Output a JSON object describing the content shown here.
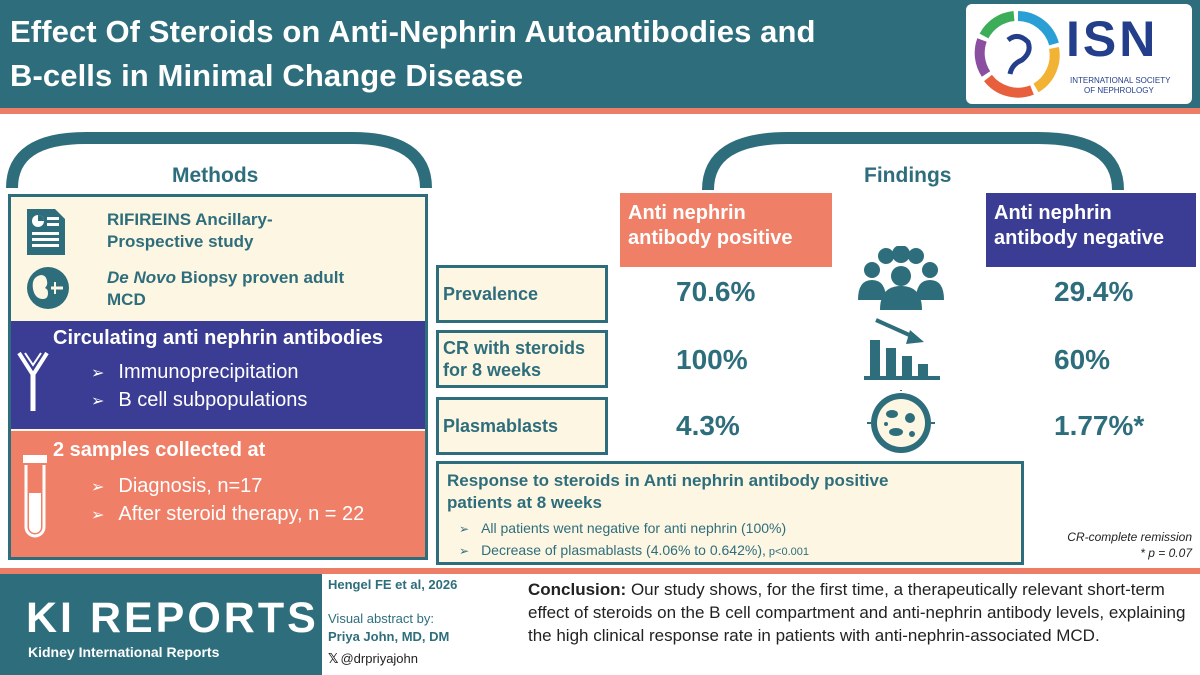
{
  "header": {
    "title_line1": "Effect Of Steroids on Anti-Nephrin Autoantibodies and",
    "title_line2": "B-cells in Minimal Change Disease",
    "isn_logo_text": "ISN",
    "isn_sub1": "INTERNATIONAL SOCIETY",
    "isn_sub2": "OF NEPHROLOGY"
  },
  "methods": {
    "heading": "Methods",
    "study_line1": "RIFIREINS Ancillary-",
    "study_line2": "Prospective study",
    "biopsy_italic": "De Novo",
    "biopsy_rest1": " Biopsy proven adult",
    "biopsy_rest2": "MCD",
    "circ_title": "Circulating anti nephrin antibodies",
    "circ_items": [
      "Immunoprecipitation",
      "B cell subpopulations"
    ],
    "samples_title": "2 samples collected at",
    "samples_items": [
      "Diagnosis, n=17",
      "After steroid therapy, n = 22"
    ]
  },
  "findings": {
    "heading": "Findings",
    "pos_head_line1": "Anti nephrin",
    "pos_head_line2": "antibody positive",
    "neg_head_line1": "Anti nephrin",
    "neg_head_line2": "antibody negative",
    "rows": [
      {
        "label_line1": "Prevalence",
        "label_line2": "",
        "pos": "70.6%",
        "neg": "29.4%"
      },
      {
        "label_line1": "CR with steroids",
        "label_line2": "for 8 weeks",
        "pos": "100%",
        "neg": "60%"
      },
      {
        "label_line1": "Plasmablasts",
        "label_line2": "",
        "pos": "4.3%",
        "neg": "1.77%*"
      }
    ],
    "response_title_line1": "Response to steroids in Anti nephrin antibody positive",
    "response_title_line2": "patients at 8 weeks",
    "response_item1": "All patients went negative for anti nephrin (100%)",
    "response_item2": "Decrease of plasmablasts (4.06% to 0.642%),",
    "response_item2_p": " p<0.001",
    "note1": "CR-complete remission",
    "note2": "* p = 0.07"
  },
  "footer": {
    "journal_logo": "KI REPORTS",
    "journal_sub": "Kidney International Reports",
    "citation": "Hengel FE et al, 2026",
    "va_by": "Visual abstract by:",
    "author": "Priya John, MD, DM",
    "handle": "@drpriyajohn",
    "conclusion_label": "Conclusion:",
    "conclusion_text": " Our study shows, for the first time, a therapeutically relevant short-term effect of steroids on the B cell compartment and anti-nephrin antibody levels, explaining the high clinical response rate in patients with anti-nephrin-associated MCD."
  },
  "colors": {
    "teal": "#2e6e7c",
    "coral": "#f07f68",
    "indigo": "#3b3d94",
    "cream": "#fdf6e3"
  }
}
